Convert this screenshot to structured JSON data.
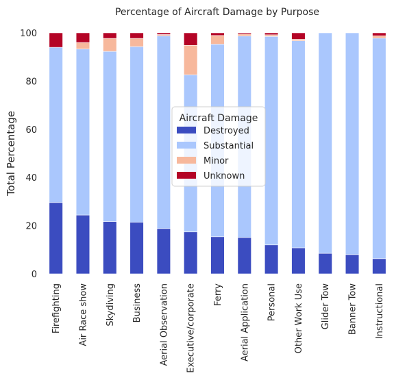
{
  "chart_data": {
    "type": "bar",
    "stacked": true,
    "title": "Percentage of Aircraft Damage by Purpose",
    "xlabel": "",
    "ylabel": "Total Percentage",
    "ylim": [
      0,
      100
    ],
    "yticks": [
      0,
      20,
      40,
      60,
      80,
      100
    ],
    "grid": false,
    "legend": {
      "title": "Aircraft Damage",
      "placement": "center"
    },
    "categories": [
      "Firefighting",
      "Air Race show",
      "Skydiving",
      "Business",
      "Aerial Observation",
      "Executive/corporate",
      "Ferry",
      "Aerial Application",
      "Personal",
      "Other Work Use",
      "Glider Tow",
      "Banner Tow",
      "Instructional"
    ],
    "series": [
      {
        "name": "Destroyed",
        "color": "#3b4cc0",
        "values": [
          29.6,
          24.4,
          21.7,
          21.4,
          18.8,
          17.4,
          15.4,
          15.1,
          12.0,
          10.8,
          8.5,
          8.0,
          6.3
        ]
      },
      {
        "name": "Substantial",
        "color": "#aac7fd",
        "values": [
          64.4,
          68.9,
          70.6,
          72.9,
          80.0,
          65.2,
          79.9,
          83.6,
          86.5,
          85.9,
          91.5,
          92.0,
          91.5
        ]
      },
      {
        "name": "Minor",
        "color": "#f7b89c",
        "values": [
          0.0,
          2.7,
          5.4,
          3.4,
          0.5,
          12.2,
          3.6,
          0.8,
          0.7,
          0.6,
          0.0,
          0.0,
          1.0
        ]
      },
      {
        "name": "Unknown",
        "color": "#b40426",
        "values": [
          6.0,
          4.0,
          2.3,
          2.3,
          0.7,
          5.2,
          1.1,
          0.5,
          0.8,
          2.7,
          0.0,
          0.0,
          1.2
        ]
      }
    ]
  }
}
